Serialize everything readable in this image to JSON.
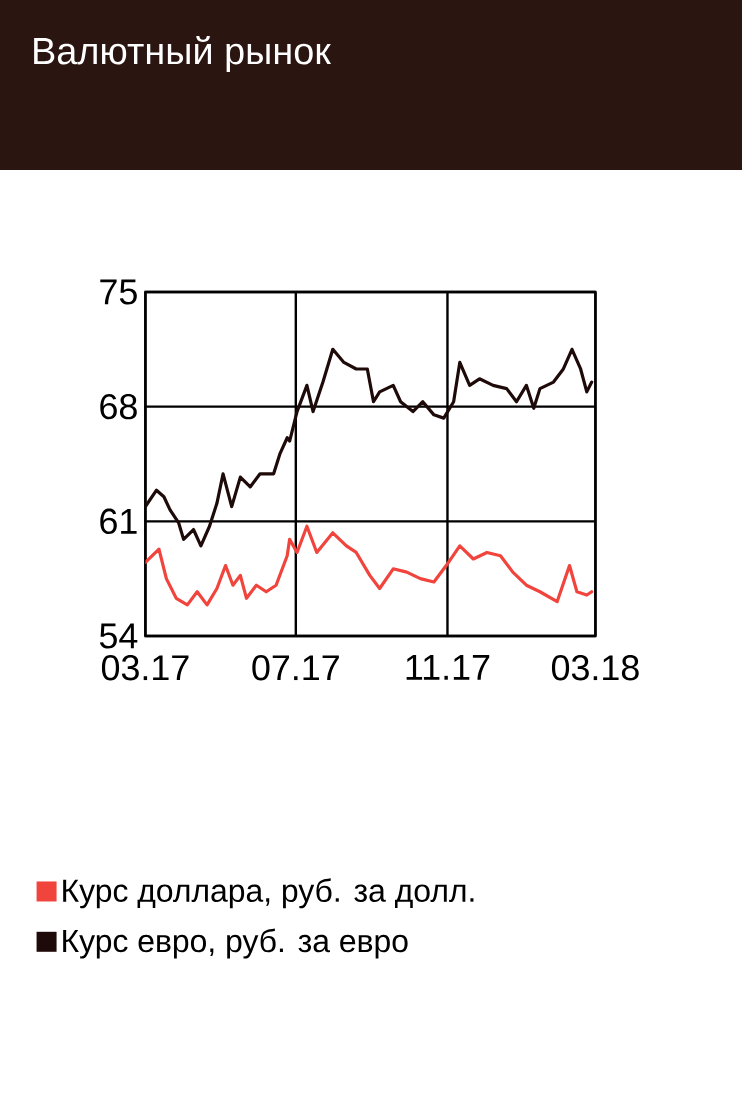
{
  "chart_data": {
    "type": "line",
    "title": "Валютный рынок",
    "xlim": [
      "2017-03-01",
      "2018-03-01"
    ],
    "xticks": [
      {
        "value": "2017-03-01",
        "label": "03.17"
      },
      {
        "value": "2017-07-01",
        "label": "07.17"
      },
      {
        "value": "2017-11-01",
        "label": "11.17"
      },
      {
        "value": "2018-03-01",
        "label": "03.18"
      }
    ],
    "ylim": [
      54,
      75
    ],
    "yticks": [
      54,
      61,
      68,
      75
    ],
    "grid": true,
    "legend": "bottom",
    "series": [
      {
        "name": "Курс доллара, руб. за долл.",
        "color": "#f0443c",
        "x": [
          "2017-03-01",
          "2017-03-12",
          "2017-03-18",
          "2017-03-26",
          "2017-04-04",
          "2017-04-12",
          "2017-04-20",
          "2017-04-28",
          "2017-05-05",
          "2017-05-11",
          "2017-05-17",
          "2017-05-22",
          "2017-05-30",
          "2017-06-07",
          "2017-06-15",
          "2017-06-24",
          "2017-06-26",
          "2017-07-02",
          "2017-07-10",
          "2017-07-18",
          "2017-07-31",
          "2017-08-11",
          "2017-08-19",
          "2017-08-30",
          "2017-09-07",
          "2017-09-18",
          "2017-09-29",
          "2017-10-10",
          "2017-10-21",
          "2017-10-31",
          "2017-11-11",
          "2017-11-22",
          "2017-12-03",
          "2017-12-14",
          "2017-12-24",
          "2018-01-04",
          "2018-01-15",
          "2018-01-29",
          "2018-02-08",
          "2018-02-14",
          "2018-02-22",
          "2018-02-26"
        ],
        "values": [
          58.5,
          59.3,
          57.5,
          56.3,
          55.9,
          56.7,
          55.9,
          56.9,
          58.3,
          57.1,
          57.7,
          56.3,
          57.1,
          56.7,
          57.1,
          58.9,
          59.9,
          59.1,
          60.7,
          59.1,
          60.3,
          59.5,
          59.1,
          57.7,
          56.9,
          58.1,
          57.9,
          57.5,
          57.3,
          58.3,
          59.5,
          58.7,
          59.1,
          58.9,
          57.9,
          57.1,
          56.7,
          56.1,
          58.3,
          56.7,
          56.5,
          56.7
        ]
      },
      {
        "name": "Курс евро, руб. за евро",
        "color": "#1e0a08",
        "x": [
          "2017-03-01",
          "2017-03-10",
          "2017-03-16",
          "2017-03-21",
          "2017-03-28",
          "2017-04-01",
          "2017-04-09",
          "2017-04-15",
          "2017-04-22",
          "2017-04-28",
          "2017-05-03",
          "2017-05-10",
          "2017-05-17",
          "2017-05-25",
          "2017-06-02",
          "2017-06-13",
          "2017-06-18",
          "2017-06-24",
          "2017-06-26",
          "2017-07-02",
          "2017-07-10",
          "2017-07-15",
          "2017-07-23",
          "2017-07-31",
          "2017-08-09",
          "2017-08-19",
          "2017-08-28",
          "2017-09-02",
          "2017-09-07",
          "2017-09-18",
          "2017-09-24",
          "2017-10-04",
          "2017-10-12",
          "2017-10-21",
          "2017-10-29",
          "2017-11-06",
          "2017-11-11",
          "2017-11-19",
          "2017-11-27",
          "2017-12-08",
          "2017-12-19",
          "2017-12-27",
          "2018-01-04",
          "2018-01-10",
          "2018-01-15",
          "2018-01-26",
          "2018-02-03",
          "2018-02-10",
          "2018-02-17",
          "2018-02-22",
          "2018-02-26"
        ],
        "values": [
          61.9,
          62.9,
          62.5,
          61.7,
          60.9,
          59.9,
          60.5,
          59.5,
          60.7,
          62.1,
          63.9,
          61.9,
          63.7,
          63.1,
          63.9,
          63.9,
          65.1,
          66.1,
          65.9,
          67.7,
          69.3,
          67.7,
          69.5,
          71.5,
          70.7,
          70.3,
          70.3,
          68.3,
          68.9,
          69.3,
          68.3,
          67.7,
          68.3,
          67.5,
          67.3,
          68.3,
          70.7,
          69.3,
          69.7,
          69.3,
          69.1,
          68.3,
          69.3,
          67.9,
          69.1,
          69.5,
          70.3,
          71.5,
          70.3,
          68.9,
          69.5
        ]
      }
    ]
  }
}
